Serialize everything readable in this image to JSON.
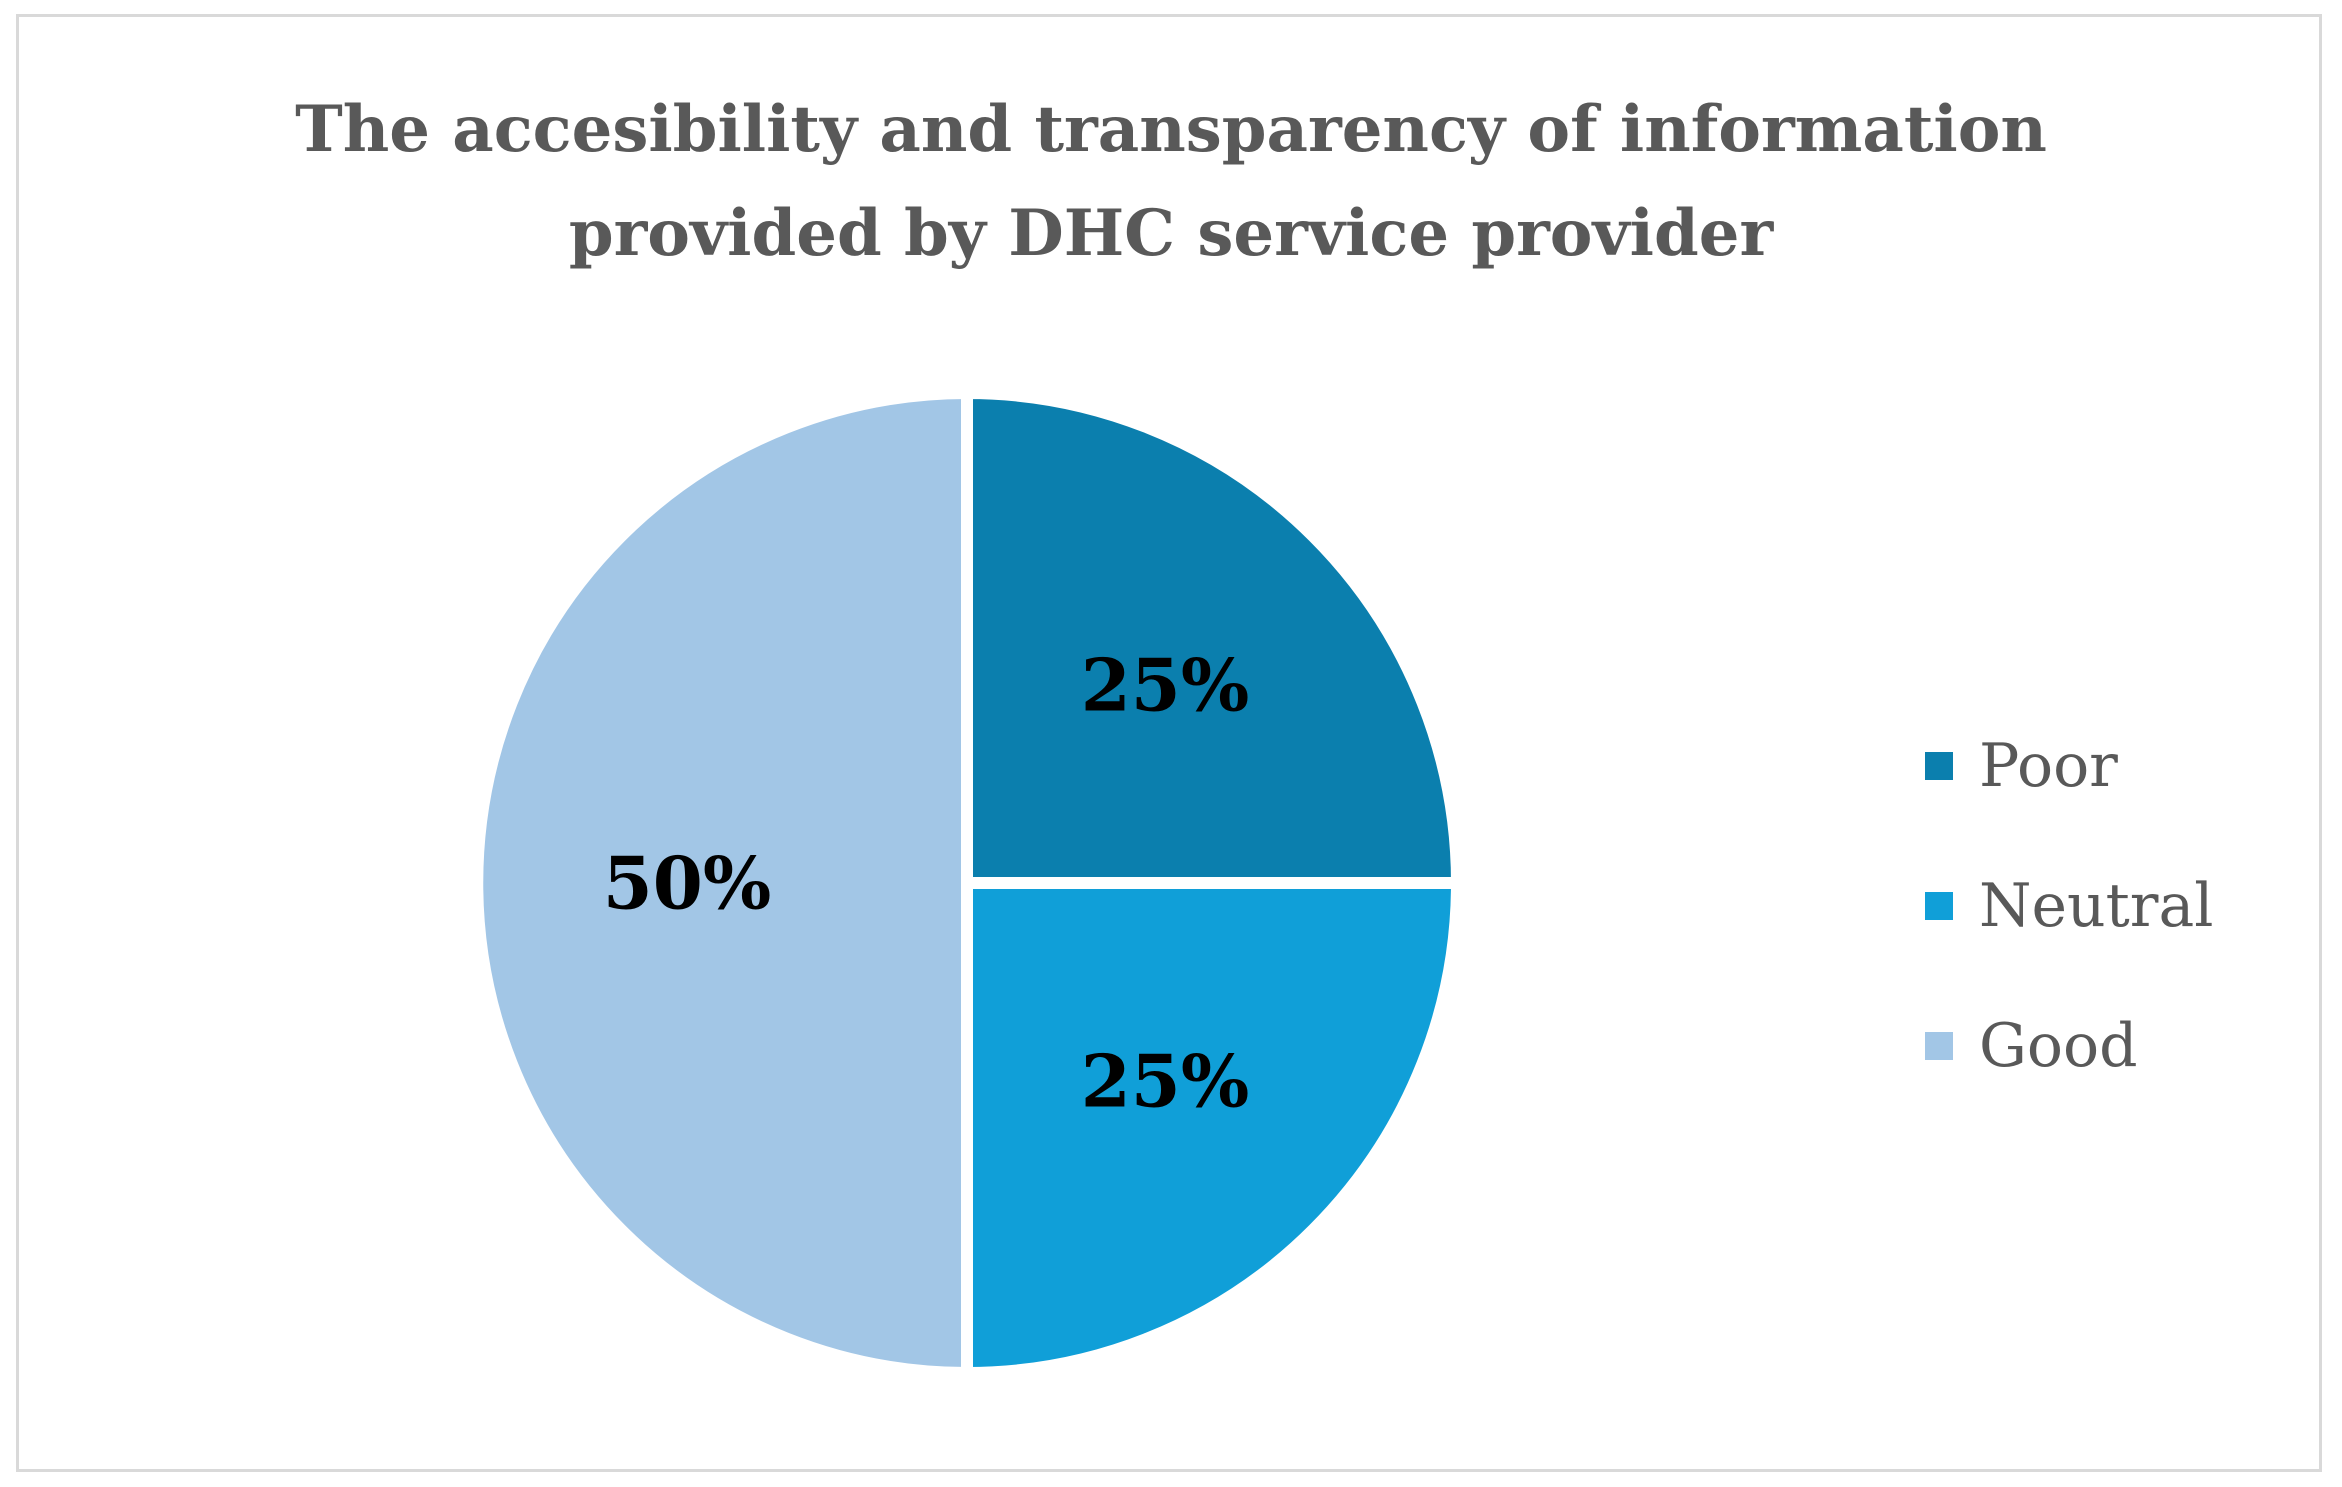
{
  "chart_data": {
    "type": "pie",
    "title": "The accesibility and transparency of information provided by DHC service provider",
    "title_lines": [
      "The accesibility and transparency of information",
      "provided by DHC service provider"
    ],
    "categories": [
      "Poor",
      "Neutral",
      "Good"
    ],
    "values": [
      25,
      25,
      50
    ],
    "data_labels": [
      "25%",
      "25%",
      "50%"
    ],
    "colors": [
      "#0b7fae",
      "#109fd8",
      "#a2c6e6"
    ],
    "legend_position": "right",
    "start_angle": "12 o'clock, clockwise"
  }
}
